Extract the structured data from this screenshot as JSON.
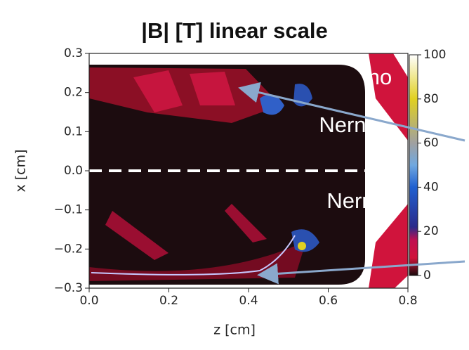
{
  "chart_data": {
    "type": "heatmap",
    "title": "|B|  [T]  linear scale",
    "x_label": "z  [cm]",
    "y_label": "x  [cm]",
    "xlim": [
      0,
      0.8
    ],
    "xticks": [
      {
        "value": 0,
        "label": "0.0"
      },
      0.2,
      0.4,
      0.6,
      0.8
    ],
    "ylim": [
      -0.3,
      0.3
    ],
    "yticks": [
      {
        "value": -0.3,
        "label": "−0.3"
      },
      {
        "value": -0.2,
        "label": "−0.2"
      },
      {
        "value": -0.1,
        "label": "−0.1"
      },
      {
        "value": 0,
        "label": "0.0"
      },
      0.1,
      0.2,
      0.3
    ],
    "clim": [
      0,
      100
    ],
    "cticks": [
      0,
      20,
      40,
      60,
      80,
      100
    ],
    "annotations": [
      "no",
      "Nernst",
      "Nernst"
    ]
  }
}
